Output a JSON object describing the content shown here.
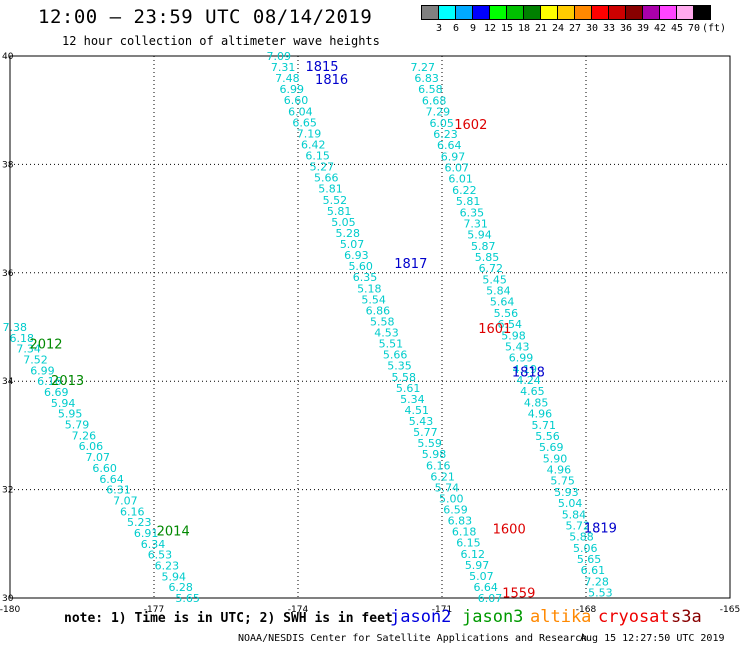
{
  "header": {
    "title": "12:00 – 23:59 UTC 08/14/2019",
    "subtitle": "12 hour collection of altimeter wave heights"
  },
  "color_scale": {
    "unit": "(ft)",
    "bins": [
      {
        "label": "3",
        "color": "#808080"
      },
      {
        "label": "6",
        "color": "#00ffff"
      },
      {
        "label": "9",
        "color": "#00aaff"
      },
      {
        "label": "12",
        "color": "#0000ff"
      },
      {
        "label": "15",
        "color": "#00ff00"
      },
      {
        "label": "18",
        "color": "#00c000"
      },
      {
        "label": "21",
        "color": "#008000"
      },
      {
        "label": "24",
        "color": "#ffff00"
      },
      {
        "label": "27",
        "color": "#ffcc00"
      },
      {
        "label": "30",
        "color": "#ff8800"
      },
      {
        "label": "33",
        "color": "#ff0000"
      },
      {
        "label": "36",
        "color": "#cc0000"
      },
      {
        "label": "39",
        "color": "#880000"
      },
      {
        "label": "42",
        "color": "#aa00aa"
      },
      {
        "label": "45",
        "color": "#ff44ff"
      },
      {
        "label": "70",
        "color": "#ffaaee"
      },
      {
        "label": "",
        "color": "#000000"
      }
    ]
  },
  "map": {
    "lon_range": [
      -180,
      -165
    ],
    "lat_range": [
      30,
      40
    ],
    "lon_ticks": [
      "-180",
      "-177",
      "-174",
      "-171",
      "-168",
      "-165"
    ],
    "lat_ticks": [
      "30",
      "32",
      "34",
      "36",
      "38",
      "40"
    ],
    "wave_color": "#00cccc",
    "tracks": [
      {
        "values": [
          "7.09",
          "7.31",
          "7.48",
          "6.99",
          "6.60",
          "6.04",
          "6.65",
          "7.19",
          "6.42",
          "6.15",
          "5.27",
          "5.66",
          "5.81",
          "5.52",
          "5.81",
          "5.05",
          "5.28",
          "5.07",
          "6.93",
          "5.60",
          "6.35",
          "5.18",
          "5.54",
          "6.86",
          "5.58",
          "4.53",
          "5.51",
          "5.66",
          "5.35",
          "5.58",
          "5.61",
          "5.34",
          "4.51",
          "5.43",
          "5.77",
          "5.59",
          "5.98",
          "6.16",
          "6.21",
          "5.74",
          "5.00",
          "6.59",
          "6.83",
          "6.18",
          "6.15",
          "6.12",
          "5.97",
          "5.07",
          "6.64",
          "6.07"
        ],
        "lat_start": 40.0,
        "lat_end": 30.0,
        "lon_start": -174.4,
        "lon_end": -170.0
      },
      {
        "values": [
          "7.27",
          "6.83",
          "6.58",
          "6.68",
          "7.29",
          "6.05",
          "6.23",
          "6.64",
          "6.97",
          "6.07",
          "6.01",
          "6.22",
          "5.81",
          "6.35",
          "7.31",
          "5.94",
          "5.87",
          "5.85",
          "6.72",
          "5.45",
          "5.84",
          "5.64",
          "5.56",
          "6.54",
          "5.98",
          "5.43",
          "6.99",
          "4.19",
          "4.24",
          "4.65",
          "4.85",
          "4.96",
          "5.71",
          "5.56",
          "5.69",
          "5.90",
          "4.96",
          "5.75",
          "5.93",
          "5.04",
          "5.84",
          "5.72",
          "5.88",
          "5.06",
          "5.65",
          "6.61",
          "7.28",
          "5.53"
        ],
        "lat_start": 39.8,
        "lat_end": 30.1,
        "lon_start": -171.4,
        "lon_end": -167.7
      },
      {
        "values": [
          "7.38",
          "6.18",
          "7.34",
          "7.52",
          "6.99",
          "6.16",
          "6.69",
          "5.94",
          "5.95",
          "5.79",
          "7.26",
          "6.06",
          "7.07",
          "6.60",
          "6.64",
          "6.31",
          "7.07",
          "6.16",
          "5.23",
          "6.91",
          "6.34",
          "6.53",
          "6.23",
          "5.94",
          "6.28",
          "5.65"
        ],
        "lat_start": 35.0,
        "lat_end": 30.0,
        "lon_start": -179.9,
        "lon_end": -176.3
      }
    ],
    "time_labels": [
      {
        "text": "1815",
        "lat": 39.82,
        "lon": -173.5,
        "color": "#0000cc"
      },
      {
        "text": "1816",
        "lat": 39.58,
        "lon": -173.3,
        "color": "#0000cc"
      },
      {
        "text": "1602",
        "lat": 38.75,
        "lon": -170.4,
        "color": "#dd0000"
      },
      {
        "text": "1817",
        "lat": 36.18,
        "lon": -171.65,
        "color": "#0000cc"
      },
      {
        "text": "1601",
        "lat": 34.98,
        "lon": -169.9,
        "color": "#dd0000"
      },
      {
        "text": "1818",
        "lat": 34.18,
        "lon": -169.2,
        "color": "#0000cc"
      },
      {
        "text": "1600",
        "lat": 31.28,
        "lon": -169.6,
        "color": "#dd0000"
      },
      {
        "text": "1819",
        "lat": 31.3,
        "lon": -167.7,
        "color": "#0000cc"
      },
      {
        "text": "1559",
        "lat": 30.1,
        "lon": -169.4,
        "color": "#dd0000"
      },
      {
        "text": "2012",
        "lat": 34.7,
        "lon": -179.25,
        "color": "#008800"
      },
      {
        "text": "2013",
        "lat": 34.02,
        "lon": -178.8,
        "color": "#008800"
      },
      {
        "text": "2014",
        "lat": 31.25,
        "lon": -176.6,
        "color": "#008800"
      }
    ]
  },
  "footer": {
    "note": "note: 1) Time is in UTC; 2) SWH is in feet",
    "satellites": [
      {
        "name": "jason2",
        "color": "#0000dd"
      },
      {
        "name": "jason3",
        "color": "#009900"
      },
      {
        "name": "altika",
        "color": "#ff8800"
      },
      {
        "name": "cryosat",
        "color": "#ee0000"
      },
      {
        "name": "s3a",
        "color": "#880000"
      }
    ],
    "credit": "NOAA/NESDIS Center for Satellite Applications and Research",
    "timestamp": "Aug 15 12:27:50 UTC 2019"
  }
}
